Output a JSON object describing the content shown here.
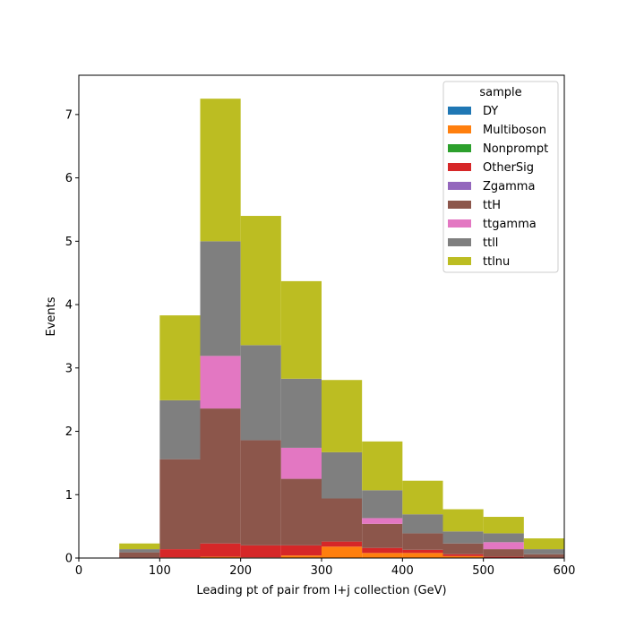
{
  "chart_data": {
    "type": "bar",
    "stacked": true,
    "histogram": true,
    "xlabel": "Leading pt of pair from l+j collection (GeV)",
    "ylabel": "Events",
    "xlim": [
      0,
      600
    ],
    "ylim": [
      0,
      7.62
    ],
    "xticks": [
      0,
      100,
      200,
      300,
      400,
      500,
      600
    ],
    "yticks": [
      0,
      1,
      2,
      3,
      4,
      5,
      6,
      7
    ],
    "grid": false,
    "legend": {
      "title": "sample",
      "placement": "top-right"
    },
    "bin_edges": [
      50,
      100,
      150,
      200,
      250,
      300,
      350,
      400,
      450,
      500,
      550,
      600
    ],
    "series": [
      {
        "name": "DY",
        "color": "#1f77b4",
        "values": [
          0,
          0,
          0,
          0,
          0,
          0,
          0,
          0,
          0,
          0,
          0
        ]
      },
      {
        "name": "Multiboson",
        "color": "#ff7f0e",
        "values": [
          0,
          0.01,
          0.02,
          0.01,
          0.04,
          0.18,
          0.08,
          0.08,
          0.03,
          0,
          0
        ]
      },
      {
        "name": "Nonprompt",
        "color": "#2ca02c",
        "values": [
          0,
          0,
          0,
          0,
          0,
          0,
          0,
          0,
          0,
          0,
          0
        ]
      },
      {
        "name": "OtherSig",
        "color": "#d62728",
        "values": [
          0.01,
          0.13,
          0.21,
          0.19,
          0.16,
          0.08,
          0.08,
          0.05,
          0.03,
          0.02,
          0.01
        ]
      },
      {
        "name": "Zgamma",
        "color": "#9467bd",
        "values": [
          0,
          0,
          0,
          0,
          0,
          0,
          0,
          0,
          0,
          0,
          0
        ]
      },
      {
        "name": "ttH",
        "color": "#8c564b",
        "values": [
          0.08,
          1.42,
          2.13,
          1.66,
          1.05,
          0.68,
          0.38,
          0.26,
          0.17,
          0.12,
          0.05
        ]
      },
      {
        "name": "ttgamma",
        "color": "#e377c2",
        "values": [
          0,
          0,
          0.83,
          0,
          0.49,
          0,
          0.09,
          0,
          0,
          0.11,
          0
        ]
      },
      {
        "name": "ttll",
        "color": "#7f7f7f",
        "values": [
          0.05,
          0.93,
          1.81,
          1.5,
          1.09,
          0.73,
          0.44,
          0.3,
          0.19,
          0.14,
          0.08
        ]
      },
      {
        "name": "ttlnu",
        "color": "#bcbd22",
        "values": [
          0.09,
          1.34,
          2.25,
          2.04,
          1.54,
          1.14,
          0.77,
          0.53,
          0.35,
          0.26,
          0.17
        ]
      }
    ]
  }
}
